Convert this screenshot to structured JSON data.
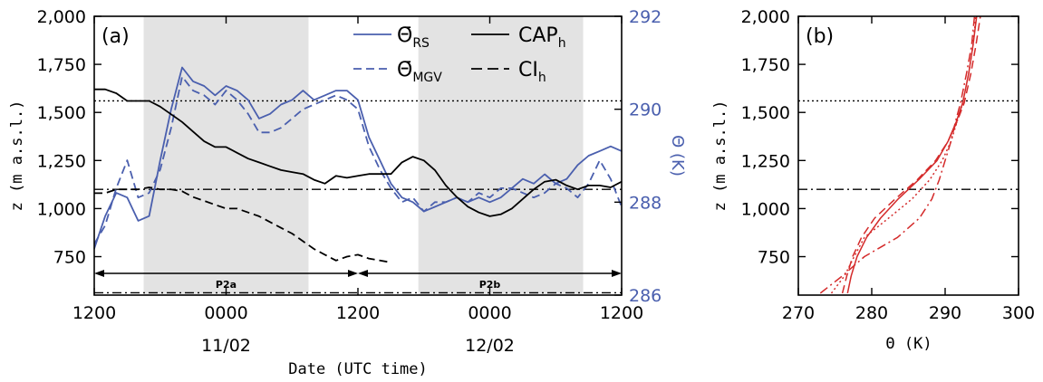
{
  "chart_data": [
    {
      "panel": "(a)",
      "type": "line",
      "xlabel": "Date (UTC time)",
      "ylabel": "z (m a.s.l.)",
      "ylabel_right": "Θ (K)",
      "x_unit": "hours from 1200 UTC 10/02",
      "xlim": [
        0,
        48
      ],
      "ylim": [
        550,
        2000
      ],
      "ylim_right": [
        286,
        292
      ],
      "x_tick_labels": [
        "1200",
        "0000",
        "1200",
        "0000",
        "1200"
      ],
      "x_tick_positions": [
        0,
        12,
        24,
        36,
        48
      ],
      "date_labels": [
        {
          "text": "11/02",
          "x": 12
        },
        {
          "text": "12/02",
          "x": 36
        }
      ],
      "y_ticks": [
        "750",
        "1,000",
        "1,250",
        "1,500",
        "1,750",
        "2,000"
      ],
      "y_tick_values": [
        750,
        1000,
        1250,
        1500,
        1750,
        2000
      ],
      "y_ticks_right": [
        "286",
        "288",
        "290",
        "292"
      ],
      "y_tick_values_right": [
        286,
        288,
        290,
        292
      ],
      "shaded_periods": [
        [
          4.5,
          19.5
        ],
        [
          29.5,
          44.5
        ]
      ],
      "periods": [
        {
          "label": "P2a",
          "start": 0,
          "end": 24
        },
        {
          "label": "P2b",
          "start": 24,
          "end": 48
        }
      ],
      "hlines": [
        {
          "y": 1560,
          "style": "dotted"
        },
        {
          "y": 1100,
          "style": "dashdot"
        },
        {
          "y": 562,
          "style": "dashdot"
        }
      ],
      "legend": [
        "Θ̄_RS",
        "Θ̄_MGV",
        "CAP_h",
        "CI_h"
      ],
      "series": [
        {
          "name": "Θ̄_RS",
          "axis": "right",
          "style": "solid",
          "color": "#4a5fae",
          "x": [
            0,
            1,
            2,
            3,
            4,
            5,
            6,
            7,
            8,
            9,
            10,
            11,
            12,
            13,
            14,
            15,
            16,
            17,
            18,
            19,
            20,
            21,
            22,
            23,
            24,
            25,
            26,
            27,
            28,
            29,
            30,
            31,
            32,
            33,
            34,
            35,
            36,
            37,
            38,
            39,
            40,
            41,
            42,
            43,
            44,
            45,
            46,
            47,
            48
          ],
          "y": [
            287.0,
            287.7,
            288.2,
            288.1,
            287.6,
            287.7,
            288.9,
            290.0,
            290.9,
            290.6,
            290.5,
            290.3,
            290.5,
            290.4,
            290.2,
            289.8,
            289.9,
            290.1,
            290.2,
            290.4,
            290.2,
            290.3,
            290.4,
            290.4,
            290.2,
            289.4,
            288.9,
            288.4,
            288.1,
            288.0,
            287.8,
            287.9,
            288.0,
            288.1,
            288.0,
            288.1,
            288.0,
            288.1,
            288.3,
            288.5,
            288.4,
            288.6,
            288.4,
            288.5,
            288.8,
            289.0,
            289.1,
            289.2,
            289.1
          ]
        },
        {
          "name": "Θ̄_MGV",
          "axis": "right",
          "style": "dashed",
          "color": "#4a5fae",
          "x": [
            0,
            1,
            2,
            3,
            4,
            5,
            6,
            7,
            8,
            9,
            10,
            11,
            12,
            13,
            14,
            15,
            16,
            17,
            18,
            19,
            20,
            21,
            22,
            23,
            24,
            25,
            26,
            27,
            28,
            29,
            30,
            31,
            32,
            33,
            34,
            35,
            36,
            37,
            38,
            39,
            40,
            41,
            42,
            43,
            44,
            45,
            46,
            47,
            48
          ],
          "y": [
            287.1,
            287.5,
            288.3,
            288.9,
            288.1,
            288.2,
            288.7,
            289.6,
            290.7,
            290.4,
            290.3,
            290.1,
            290.4,
            290.2,
            289.9,
            289.5,
            289.5,
            289.6,
            289.8,
            290.0,
            290.1,
            290.2,
            290.3,
            290.2,
            290.0,
            289.2,
            288.7,
            288.3,
            288.0,
            288.1,
            287.8,
            288.0,
            288.0,
            288.1,
            288.0,
            288.2,
            288.1,
            288.3,
            288.3,
            288.2,
            288.1,
            288.2,
            288.4,
            288.3,
            288.1,
            288.4,
            288.9,
            288.5,
            287.9
          ]
        },
        {
          "name": "CAP_h",
          "axis": "left",
          "style": "solid",
          "color": "#000000",
          "x": [
            0,
            1,
            2,
            3,
            4,
            5,
            6,
            7,
            8,
            9,
            10,
            11,
            12,
            13,
            14,
            15,
            16,
            17,
            18,
            19,
            20,
            21,
            22,
            23,
            24,
            25,
            26,
            27,
            28,
            29,
            30,
            31,
            32,
            33,
            34,
            35,
            36,
            37,
            38,
            39,
            40,
            41,
            42,
            43,
            44,
            45,
            46,
            47,
            48
          ],
          "y": [
            1620,
            1620,
            1600,
            1560,
            1560,
            1560,
            1530,
            1490,
            1450,
            1400,
            1350,
            1320,
            1320,
            1290,
            1260,
            1240,
            1220,
            1200,
            1190,
            1180,
            1150,
            1130,
            1170,
            1160,
            1170,
            1180,
            1180,
            1180,
            1240,
            1270,
            1250,
            1200,
            1120,
            1060,
            1010,
            980,
            960,
            970,
            1000,
            1050,
            1100,
            1140,
            1150,
            1120,
            1100,
            1120,
            1120,
            1110,
            1140
          ]
        },
        {
          "name": "CI_h",
          "axis": "left",
          "style": "dashed",
          "color": "#000000",
          "x": [
            0,
            1,
            2,
            3,
            4,
            5,
            6,
            7,
            8,
            9,
            10,
            11,
            12,
            13,
            14,
            15,
            16,
            17,
            18,
            19,
            20,
            21,
            22,
            23,
            24,
            25,
            26,
            27
          ],
          "y": [
            1080,
            1080,
            1100,
            1100,
            1100,
            1110,
            1100,
            1100,
            1090,
            1060,
            1040,
            1020,
            1000,
            1000,
            980,
            960,
            930,
            900,
            870,
            830,
            790,
            760,
            730,
            750,
            760,
            740,
            730,
            720
          ]
        }
      ]
    },
    {
      "panel": "(b)",
      "type": "line",
      "xlabel": "Θ (K)",
      "ylabel": "z (m a.s.l.)",
      "xlim": [
        270,
        300
      ],
      "ylim": [
        550,
        2000
      ],
      "x_ticks": [
        "270",
        "280",
        "290",
        "300"
      ],
      "x_tick_values": [
        270,
        280,
        290,
        300
      ],
      "y_ticks": [
        "750",
        "1,000",
        "1,250",
        "1,500",
        "1,750",
        "2,000"
      ],
      "y_tick_values": [
        750,
        1000,
        1250,
        1500,
        1750,
        2000
      ],
      "hlines": [
        {
          "y": 1560,
          "style": "dotted"
        },
        {
          "y": 1100,
          "style": "dashdot"
        }
      ],
      "series": [
        {
          "style": "solid",
          "color": "#d42a2a",
          "x": [
            276.7,
            277.2,
            278.0,
            279.3,
            281.2,
            283.6,
            286.4,
            288.9,
            290.4,
            291.5,
            292.4,
            293.2,
            293.8,
            294.3
          ],
          "y": [
            560,
            650,
            750,
            850,
            950,
            1050,
            1150,
            1250,
            1350,
            1450,
            1550,
            1700,
            1850,
            2000
          ]
        },
        {
          "style": "dashed",
          "color": "#d42a2a",
          "x": [
            276.0,
            276.6,
            277.4,
            278.6,
            280.4,
            283.2,
            286.2,
            288.7,
            290.4,
            291.6,
            292.6,
            293.5,
            294.2,
            294.8
          ],
          "y": [
            560,
            650,
            750,
            850,
            950,
            1050,
            1150,
            1250,
            1350,
            1450,
            1550,
            1700,
            1850,
            2000
          ]
        },
        {
          "style": "dotted",
          "color": "#d42a2a",
          "x": [
            274.5,
            276.3,
            277.6,
            279.0,
            282.3,
            285.5,
            287.9,
            289.6,
            290.8,
            291.6,
            292.4,
            293.2,
            293.8,
            294.2
          ],
          "y": [
            560,
            650,
            750,
            850,
            950,
            1050,
            1150,
            1250,
            1350,
            1450,
            1550,
            1700,
            1850,
            2000
          ]
        },
        {
          "style": "dashdot",
          "color": "#d42a2a",
          "x": [
            273.0,
            276.0,
            279.0,
            283.5,
            286.5,
            288.2,
            289.2,
            290.0,
            290.8,
            291.4,
            292.1,
            292.9,
            293.6,
            294.0
          ],
          "y": [
            560,
            650,
            750,
            850,
            950,
            1050,
            1150,
            1250,
            1350,
            1450,
            1550,
            1700,
            1850,
            2000
          ]
        }
      ]
    }
  ]
}
